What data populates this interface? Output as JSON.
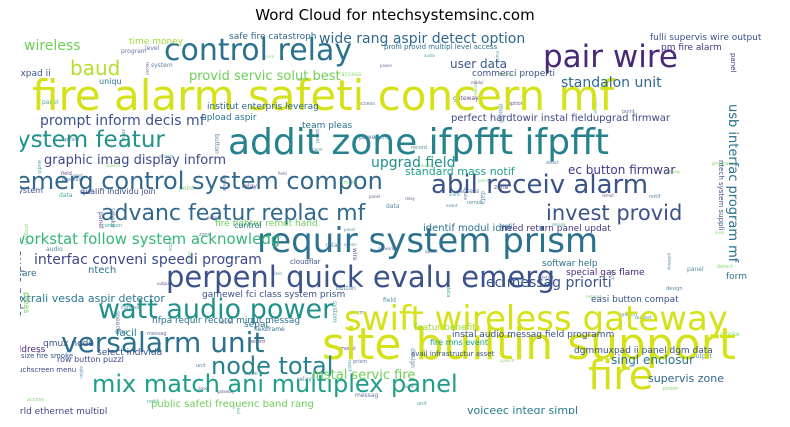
{
  "chart_data": {
    "type": "word_cloud",
    "title": "Word Cloud for ntechsystemsinc.com",
    "words": [
      {
        "text": "fire alarm safeti concern mf",
        "color": "#d5e21a"
      },
      {
        "text": "addit zone ifpfft ifpfft",
        "color": "#26828e"
      },
      {
        "text": "site builtin support",
        "color": "#d5e21a"
      },
      {
        "text": "requir system prism",
        "color": "#2c728e"
      },
      {
        "text": "swift wireless gateway",
        "color": "#d5e21a"
      },
      {
        "text": "perpenl quick evalu emerg",
        "color": "#3b528b"
      },
      {
        "text": "control relay",
        "color": "#2c728e"
      },
      {
        "text": "fire",
        "color": "#d5e21a"
      },
      {
        "text": "pair wire",
        "color": "#482878"
      },
      {
        "text": "emerg control system compon",
        "color": "#31688e"
      },
      {
        "text": "abil receiv alarm",
        "color": "#3b528b"
      },
      {
        "text": "mix match ani multiplex panel",
        "color": "#1f9e89"
      },
      {
        "text": "watt audio power",
        "color": "#21918c"
      },
      {
        "text": "advanc featur replac mf",
        "color": "#31688e"
      },
      {
        "text": "versalarm unit",
        "color": "#2c728e"
      },
      {
        "text": "node total",
        "color": "#26828e"
      },
      {
        "text": "system featur",
        "color": "#21918c"
      },
      {
        "text": "invest provid",
        "color": "#3b528b"
      },
      {
        "text": "baud",
        "color": "#b5de2b"
      },
      {
        "text": "workstat follow system acknowledg",
        "color": "#35b779"
      },
      {
        "text": "wide rang aspir detect option",
        "color": "#31688e"
      },
      {
        "text": "provid servic solut best",
        "color": "#6ece58"
      },
      {
        "text": "interfac conveni speedi program",
        "color": "#3e4989"
      },
      {
        "text": "prompt inform decis mf",
        "color": "#3b528b"
      },
      {
        "text": "ec messag prioriti",
        "color": "#3b528b"
      },
      {
        "text": "graphic imag display inform",
        "color": "#3e4989"
      },
      {
        "text": "upgrad field",
        "color": "#21918c"
      },
      {
        "text": "wireless",
        "color": "#6ece58"
      },
      {
        "text": "standalon unit",
        "color": "#31688e"
      },
      {
        "text": "user data",
        "color": "#38598c"
      },
      {
        "text": "perfect hardtowir instal fieldupgrad firmwar",
        "color": "#3e4989"
      },
      {
        "text": "usb interfac program mf",
        "color": "#2c728e"
      },
      {
        "text": "ec button firmwar",
        "color": "#443983"
      },
      {
        "text": "standard mass notif",
        "color": "#1fa187"
      },
      {
        "text": "instal servic fire",
        "color": "#6ece58"
      },
      {
        "text": "audio node",
        "color": "#38598c"
      },
      {
        "text": "xtrali vesda aspir detector",
        "color": "#2a788e"
      },
      {
        "text": "singl enclosur",
        "color": "#2c728e"
      },
      {
        "text": "supervis zone",
        "color": "#31688e"
      },
      {
        "text": "public safeti frequenc band rang",
        "color": "#6ece58"
      },
      {
        "text": "voiceec integr simpl",
        "color": "#2a788e"
      },
      {
        "text": "world ethernet multipl",
        "color": "#3e4989"
      },
      {
        "text": "address switch",
        "color": "#6ece58"
      },
      {
        "text": "fire fighter remot hand",
        "color": "#6ece58"
      },
      {
        "text": "qualifi individu join",
        "color": "#3e4989"
      },
      {
        "text": "muxpad ii",
        "color": "#3b528b"
      },
      {
        "text": "time money",
        "color": "#a0da39"
      },
      {
        "text": "safe fire catastroph",
        "color": "#31688e"
      },
      {
        "text": "institut enterpris leverag",
        "color": "#31688e"
      },
      {
        "text": "commerci properti",
        "color": "#3b528b"
      },
      {
        "text": "pm fire alarm",
        "color": "#443983"
      },
      {
        "text": "fulli supervis wire output",
        "color": "#3b528b"
      },
      {
        "text": "upload aspir",
        "color": "#2c728e"
      },
      {
        "text": "team pleas",
        "color": "#2c728e"
      },
      {
        "text": "identif modul idm",
        "color": "#2c728e"
      },
      {
        "text": "need return panel updat",
        "color": "#443983"
      },
      {
        "text": "softwar help",
        "color": "#2c728e"
      },
      {
        "text": "special gas flame",
        "color": "#482878"
      },
      {
        "text": "easi button compat",
        "color": "#3b528b"
      },
      {
        "text": "gamewel fci class system prism",
        "color": "#3b528b"
      },
      {
        "text": "nfpa requir record minut messag",
        "color": "#2c728e"
      },
      {
        "text": "featur benefit",
        "color": "#a0da39"
      },
      {
        "text": "select individu",
        "color": "#3b528b"
      },
      {
        "text": "qmux node",
        "color": "#3b528b"
      },
      {
        "text": "facil",
        "color": "#2a788e"
      },
      {
        "text": "address",
        "color": "#482878"
      },
      {
        "text": "row button puzzl",
        "color": "#3e4989"
      },
      {
        "text": "touchscreen menu",
        "color": "#3e4989"
      },
      {
        "text": "dgmmuxpad ii panel dgm data",
        "color": "#3b528b"
      },
      {
        "text": "fire mns event",
        "color": "#1fa187"
      },
      {
        "text": "instal audio messag field programm",
        "color": "#3b528b"
      },
      {
        "text": "avail infrastructur asset",
        "color": "#3b528b"
      },
      {
        "text": "ntech",
        "color": "#2c728e"
      },
      {
        "text": "separ",
        "color": "#2c728e"
      },
      {
        "text": "uniqu",
        "color": "#2c728e"
      },
      {
        "text": "form",
        "color": "#2c728e"
      },
      {
        "text": "care",
        "color": "#2c728e"
      },
      {
        "text": "control",
        "color": "#2c728e"
      },
      {
        "text": "pleas",
        "color": "#6ece58"
      },
      {
        "text": "ntech system suppli",
        "color": "#3b528b"
      },
      {
        "text": "panel",
        "color": "#443983"
      },
      {
        "text": "system",
        "color": "#3b528b"
      },
      {
        "text": "type size fire smoke",
        "color": "#3b528b"
      },
      {
        "text": "cloudflar",
        "color": "#3b528b"
      },
      {
        "text": "profil provid multipl level access",
        "color": "#2c728e"
      },
      {
        "text": "fieldframe",
        "color": "#2c728e"
      }
    ]
  }
}
